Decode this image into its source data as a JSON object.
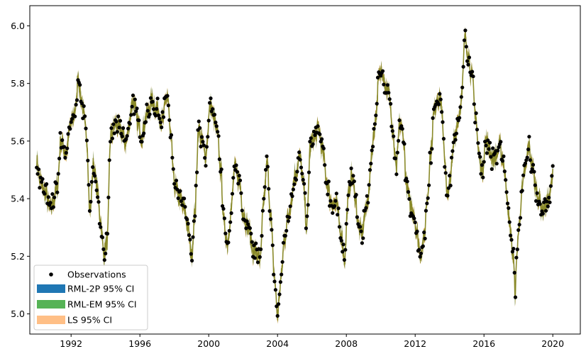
{
  "chart_data": {
    "type": "line",
    "title": "",
    "xlabel": "",
    "ylabel": "",
    "x_ticks": [
      "1992",
      "1996",
      "2000",
      "2004",
      "2008",
      "2012",
      "2016",
      "2020"
    ],
    "y_ticks": [
      "5.0",
      "5.2",
      "5.4",
      "5.6",
      "5.8",
      "6.0"
    ],
    "xlim": [
      1989.6,
      2021.6
    ],
    "ylim": [
      4.93,
      6.07
    ],
    "grid": false,
    "legend_position": "lower-left",
    "colors": {
      "observations": "#000000",
      "rml2p": "#1f77b4",
      "rmlem": "#2ca02c",
      "ls": "#ff7f0e",
      "overlap": "#8a8a2a"
    },
    "series": [
      {
        "name": "Observations"
      },
      {
        "name": "RML-2P 95% CI"
      },
      {
        "name": "RML-EM 95% CI"
      },
      {
        "name": "LS 95% CI"
      }
    ],
    "keypoints": [
      [
        1990.0,
        5.53
      ],
      [
        1990.2,
        5.46
      ],
      [
        1990.5,
        5.42
      ],
      [
        1990.8,
        5.36
      ],
      [
        1991.0,
        5.4
      ],
      [
        1991.2,
        5.44
      ],
      [
        1991.4,
        5.6
      ],
      [
        1991.7,
        5.56
      ],
      [
        1992.0,
        5.66
      ],
      [
        1992.3,
        5.72
      ],
      [
        1992.4,
        5.83
      ],
      [
        1992.6,
        5.74
      ],
      [
        1992.9,
        5.62
      ],
      [
        1993.1,
        5.35
      ],
      [
        1993.3,
        5.52
      ],
      [
        1993.5,
        5.44
      ],
      [
        1993.7,
        5.33
      ],
      [
        1993.9,
        5.21
      ],
      [
        1994.1,
        5.25
      ],
      [
        1994.3,
        5.62
      ],
      [
        1994.6,
        5.66
      ],
      [
        1994.9,
        5.63
      ],
      [
        1995.2,
        5.6
      ],
      [
        1995.6,
        5.74
      ],
      [
        1995.9,
        5.66
      ],
      [
        1996.1,
        5.62
      ],
      [
        1996.4,
        5.69
      ],
      [
        1996.7,
        5.74
      ],
      [
        1997.0,
        5.71
      ],
      [
        1997.3,
        5.67
      ],
      [
        1997.6,
        5.76
      ],
      [
        1997.8,
        5.6
      ],
      [
        1998.0,
        5.45
      ],
      [
        1998.3,
        5.4
      ],
      [
        1998.6,
        5.36
      ],
      [
        1998.8,
        5.3
      ],
      [
        1999.0,
        5.2
      ],
      [
        1999.2,
        5.35
      ],
      [
        1999.4,
        5.64
      ],
      [
        1999.6,
        5.6
      ],
      [
        1999.8,
        5.55
      ],
      [
        2000.1,
        5.72
      ],
      [
        2000.3,
        5.68
      ],
      [
        2000.5,
        5.62
      ],
      [
        2000.7,
        5.5
      ],
      [
        2000.9,
        5.3
      ],
      [
        2001.1,
        5.25
      ],
      [
        2001.3,
        5.36
      ],
      [
        2001.5,
        5.5
      ],
      [
        2001.8,
        5.46
      ],
      [
        2002.0,
        5.35
      ],
      [
        2002.3,
        5.3
      ],
      [
        2002.6,
        5.22
      ],
      [
        2002.8,
        5.21
      ],
      [
        2003.0,
        5.18
      ],
      [
        2003.2,
        5.4
      ],
      [
        2003.4,
        5.52
      ],
      [
        2003.6,
        5.34
      ],
      [
        2003.8,
        5.14
      ],
      [
        2004.0,
        5.0
      ],
      [
        2004.2,
        5.12
      ],
      [
        2004.4,
        5.26
      ],
      [
        2004.6,
        5.33
      ],
      [
        2004.8,
        5.4
      ],
      [
        2005.0,
        5.48
      ],
      [
        2005.3,
        5.54
      ],
      [
        2005.5,
        5.45
      ],
      [
        2005.7,
        5.3
      ],
      [
        2005.9,
        5.58
      ],
      [
        2006.1,
        5.61
      ],
      [
        2006.4,
        5.64
      ],
      [
        2006.6,
        5.57
      ],
      [
        2006.9,
        5.45
      ],
      [
        2007.1,
        5.39
      ],
      [
        2007.4,
        5.38
      ],
      [
        2007.7,
        5.28
      ],
      [
        2007.9,
        5.19
      ],
      [
        2008.1,
        5.4
      ],
      [
        2008.3,
        5.48
      ],
      [
        2008.5,
        5.42
      ],
      [
        2008.7,
        5.3
      ],
      [
        2008.9,
        5.28
      ],
      [
        2009.1,
        5.35
      ],
      [
        2009.3,
        5.42
      ],
      [
        2009.5,
        5.58
      ],
      [
        2009.7,
        5.68
      ],
      [
        2009.9,
        5.82
      ],
      [
        2010.1,
        5.85
      ],
      [
        2010.3,
        5.79
      ],
      [
        2010.5,
        5.76
      ],
      [
        2010.7,
        5.62
      ],
      [
        2010.9,
        5.5
      ],
      [
        2011.1,
        5.66
      ],
      [
        2011.3,
        5.62
      ],
      [
        2011.5,
        5.45
      ],
      [
        2011.7,
        5.38
      ],
      [
        2011.9,
        5.36
      ],
      [
        2012.1,
        5.28
      ],
      [
        2012.3,
        5.21
      ],
      [
        2012.5,
        5.25
      ],
      [
        2012.7,
        5.4
      ],
      [
        2012.9,
        5.56
      ],
      [
        2013.1,
        5.7
      ],
      [
        2013.3,
        5.76
      ],
      [
        2013.5,
        5.74
      ],
      [
        2013.7,
        5.55
      ],
      [
        2013.9,
        5.4
      ],
      [
        2014.1,
        5.5
      ],
      [
        2014.3,
        5.62
      ],
      [
        2014.5,
        5.68
      ],
      [
        2014.7,
        5.75
      ],
      [
        2014.9,
        5.96
      ],
      [
        2015.1,
        5.9
      ],
      [
        2015.3,
        5.82
      ],
      [
        2015.5,
        5.7
      ],
      [
        2015.7,
        5.55
      ],
      [
        2015.9,
        5.5
      ],
      [
        2016.1,
        5.6
      ],
      [
        2016.3,
        5.58
      ],
      [
        2016.5,
        5.54
      ],
      [
        2016.7,
        5.55
      ],
      [
        2016.9,
        5.58
      ],
      [
        2017.1,
        5.54
      ],
      [
        2017.3,
        5.44
      ],
      [
        2017.5,
        5.3
      ],
      [
        2017.7,
        5.2
      ],
      [
        2017.8,
        5.08
      ],
      [
        2018.0,
        5.28
      ],
      [
        2018.2,
        5.42
      ],
      [
        2018.4,
        5.5
      ],
      [
        2018.6,
        5.58
      ],
      [
        2018.8,
        5.52
      ],
      [
        2019.0,
        5.44
      ],
      [
        2019.2,
        5.4
      ],
      [
        2019.4,
        5.36
      ],
      [
        2019.6,
        5.38
      ],
      [
        2019.8,
        5.4
      ],
      [
        2020.0,
        5.48
      ]
    ]
  }
}
